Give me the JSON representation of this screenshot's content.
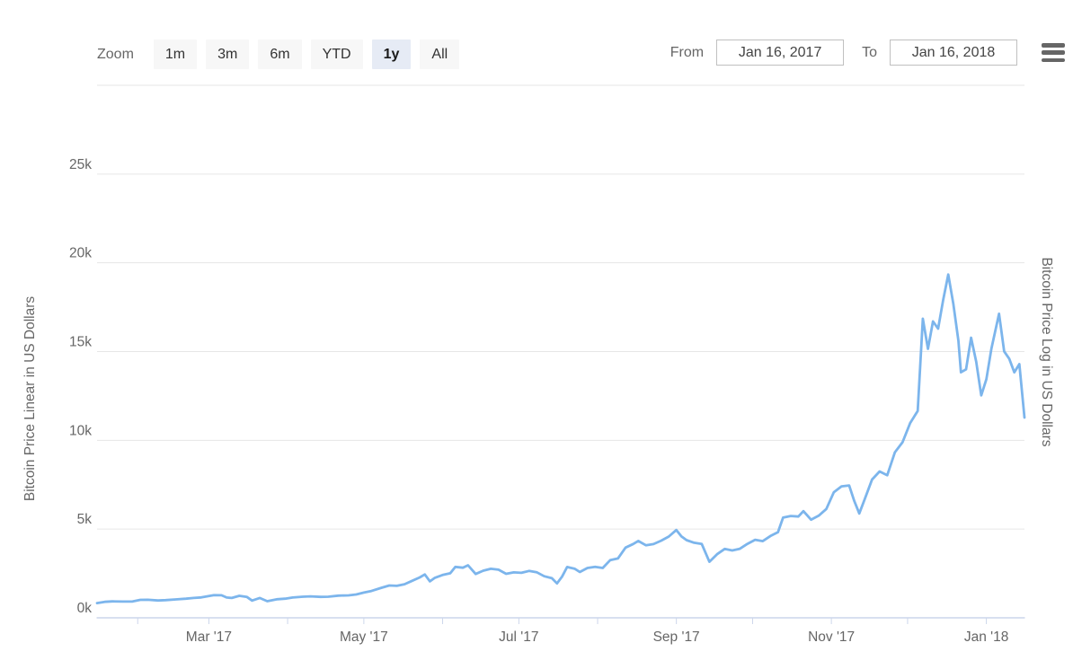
{
  "header": {
    "zoom_label": "Zoom",
    "range_buttons": [
      {
        "label": "1m",
        "selected": false
      },
      {
        "label": "3m",
        "selected": false
      },
      {
        "label": "6m",
        "selected": false
      },
      {
        "label": "YTD",
        "selected": false
      },
      {
        "label": "1y",
        "selected": true
      },
      {
        "label": "All",
        "selected": false
      }
    ],
    "from_label": "From",
    "from_value": "Jan 16, 2017",
    "to_label": "To",
    "to_value": "Jan 16, 2018",
    "menu_icon": "hamburger-menu-icon"
  },
  "colors": {
    "line": "#7cb5ec",
    "grid": "#e6e6e6",
    "axis_line": "#ccd6eb",
    "label": "#666666"
  },
  "chart_data": {
    "type": "line",
    "title": "",
    "left_axis_title": "Bitcoin Price Linear in US Dollars",
    "right_axis_title": "Bitcoin Price Log in US Dollars",
    "x_range": [
      "2017-01-16",
      "2018-01-16"
    ],
    "ylim": [
      0,
      30000
    ],
    "grid": "horizontal-only",
    "legend": "none",
    "yticks": [
      {
        "value": 0,
        "label": "0k"
      },
      {
        "value": 5000,
        "label": "5k"
      },
      {
        "value": 10000,
        "label": "10k"
      },
      {
        "value": 15000,
        "label": "15k"
      },
      {
        "value": 20000,
        "label": "20k"
      },
      {
        "value": 25000,
        "label": "25k"
      },
      {
        "value": 30000,
        "label": ""
      }
    ],
    "xticks": [
      {
        "date": "2017-02-01",
        "label": ""
      },
      {
        "date": "2017-03-01",
        "label": "Mar '17"
      },
      {
        "date": "2017-04-01",
        "label": ""
      },
      {
        "date": "2017-05-01",
        "label": "May '17"
      },
      {
        "date": "2017-06-01",
        "label": ""
      },
      {
        "date": "2017-07-01",
        "label": "Jul '17"
      },
      {
        "date": "2017-08-01",
        "label": ""
      },
      {
        "date": "2017-09-01",
        "label": "Sep '17"
      },
      {
        "date": "2017-10-01",
        "label": ""
      },
      {
        "date": "2017-11-01",
        "label": "Nov '17"
      },
      {
        "date": "2017-12-01",
        "label": ""
      },
      {
        "date": "2018-01-01",
        "label": "Jan '18"
      }
    ],
    "points": [
      [
        "2017-01-16",
        831
      ],
      [
        "2017-01-19",
        899
      ],
      [
        "2017-01-22",
        924
      ],
      [
        "2017-01-26",
        915
      ],
      [
        "2017-01-30",
        921
      ],
      [
        "2017-02-02",
        1010
      ],
      [
        "2017-02-05",
        1018
      ],
      [
        "2017-02-09",
        975
      ],
      [
        "2017-02-12",
        998
      ],
      [
        "2017-02-16",
        1035
      ],
      [
        "2017-02-20",
        1080
      ],
      [
        "2017-02-23",
        1120
      ],
      [
        "2017-02-26",
        1150
      ],
      [
        "2017-03-01",
        1222
      ],
      [
        "2017-03-03",
        1275
      ],
      [
        "2017-03-06",
        1272
      ],
      [
        "2017-03-08",
        1145
      ],
      [
        "2017-03-10",
        1116
      ],
      [
        "2017-03-13",
        1240
      ],
      [
        "2017-03-16",
        1172
      ],
      [
        "2017-03-18",
        972
      ],
      [
        "2017-03-21",
        1120
      ],
      [
        "2017-03-24",
        935
      ],
      [
        "2017-03-28",
        1045
      ],
      [
        "2017-03-31",
        1079
      ],
      [
        "2017-04-03",
        1141
      ],
      [
        "2017-04-07",
        1190
      ],
      [
        "2017-04-10",
        1208
      ],
      [
        "2017-04-14",
        1177
      ],
      [
        "2017-04-17",
        1190
      ],
      [
        "2017-04-21",
        1248
      ],
      [
        "2017-04-25",
        1265
      ],
      [
        "2017-04-28",
        1316
      ],
      [
        "2017-05-01",
        1421
      ],
      [
        "2017-05-04",
        1511
      ],
      [
        "2017-05-08",
        1696
      ],
      [
        "2017-05-11",
        1819
      ],
      [
        "2017-05-14",
        1800
      ],
      [
        "2017-05-17",
        1890
      ],
      [
        "2017-05-20",
        2084
      ],
      [
        "2017-05-23",
        2278
      ],
      [
        "2017-05-25",
        2446
      ],
      [
        "2017-05-27",
        2052
      ],
      [
        "2017-05-29",
        2255
      ],
      [
        "2017-06-01",
        2412
      ],
      [
        "2017-06-04",
        2511
      ],
      [
        "2017-06-06",
        2870
      ],
      [
        "2017-06-09",
        2823
      ],
      [
        "2017-06-11",
        2958
      ],
      [
        "2017-06-14",
        2468
      ],
      [
        "2017-06-17",
        2655
      ],
      [
        "2017-06-20",
        2761
      ],
      [
        "2017-06-23",
        2710
      ],
      [
        "2017-06-26",
        2478
      ],
      [
        "2017-06-29",
        2558
      ],
      [
        "2017-07-02",
        2536
      ],
      [
        "2017-07-05",
        2640
      ],
      [
        "2017-07-08",
        2572
      ],
      [
        "2017-07-11",
        2342
      ],
      [
        "2017-07-14",
        2233
      ],
      [
        "2017-07-16",
        1939
      ],
      [
        "2017-07-18",
        2318
      ],
      [
        "2017-07-20",
        2861
      ],
      [
        "2017-07-23",
        2762
      ],
      [
        "2017-07-25",
        2580
      ],
      [
        "2017-07-28",
        2809
      ],
      [
        "2017-07-31",
        2871
      ],
      [
        "2017-08-03",
        2806
      ],
      [
        "2017-08-06",
        3252
      ],
      [
        "2017-08-09",
        3344
      ],
      [
        "2017-08-12",
        3954
      ],
      [
        "2017-08-15",
        4161
      ],
      [
        "2017-08-17",
        4331
      ],
      [
        "2017-08-20",
        4087
      ],
      [
        "2017-08-23",
        4151
      ],
      [
        "2017-08-26",
        4345
      ],
      [
        "2017-08-29",
        4579
      ],
      [
        "2017-09-01",
        4950
      ],
      [
        "2017-09-03",
        4585
      ],
      [
        "2017-09-05",
        4376
      ],
      [
        "2017-09-08",
        4229
      ],
      [
        "2017-09-11",
        4161
      ],
      [
        "2017-09-14",
        3156
      ],
      [
        "2017-09-17",
        3582
      ],
      [
        "2017-09-20",
        3882
      ],
      [
        "2017-09-23",
        3792
      ],
      [
        "2017-09-26",
        3892
      ],
      [
        "2017-09-29",
        4171
      ],
      [
        "2017-10-02",
        4395
      ],
      [
        "2017-10-05",
        4321
      ],
      [
        "2017-10-08",
        4611
      ],
      [
        "2017-10-11",
        4827
      ],
      [
        "2017-10-13",
        5647
      ],
      [
        "2017-10-16",
        5739
      ],
      [
        "2017-10-19",
        5708
      ],
      [
        "2017-10-21",
        6008
      ],
      [
        "2017-10-24",
        5527
      ],
      [
        "2017-10-27",
        5754
      ],
      [
        "2017-10-30",
        6130
      ],
      [
        "2017-11-02",
        7078
      ],
      [
        "2017-11-05",
        7408
      ],
      [
        "2017-11-08",
        7459
      ],
      [
        "2017-11-10",
        6583
      ],
      [
        "2017-11-12",
        5879
      ],
      [
        "2017-11-14",
        6636
      ],
      [
        "2017-11-17",
        7790
      ],
      [
        "2017-11-20",
        8245
      ],
      [
        "2017-11-23",
        8034
      ],
      [
        "2017-11-26",
        9322
      ],
      [
        "2017-11-29",
        9888
      ],
      [
        "2017-12-02",
        10975
      ],
      [
        "2017-12-05",
        11657
      ],
      [
        "2017-12-07",
        16850
      ],
      [
        "2017-12-09",
        15150
      ],
      [
        "2017-12-11",
        16700
      ],
      [
        "2017-12-13",
        16290
      ],
      [
        "2017-12-15",
        17900
      ],
      [
        "2017-12-17",
        19340
      ],
      [
        "2017-12-19",
        17700
      ],
      [
        "2017-12-21",
        15600
      ],
      [
        "2017-12-22",
        13830
      ],
      [
        "2017-12-24",
        14000
      ],
      [
        "2017-12-26",
        15780
      ],
      [
        "2017-12-28",
        14430
      ],
      [
        "2017-12-30",
        12530
      ],
      [
        "2018-01-01",
        13440
      ],
      [
        "2018-01-03",
        15160
      ],
      [
        "2018-01-06",
        17130
      ],
      [
        "2018-01-08",
        15010
      ],
      [
        "2018-01-10",
        14600
      ],
      [
        "2018-01-12",
        13830
      ],
      [
        "2018-01-14",
        14290
      ],
      [
        "2018-01-16",
        11280
      ]
    ]
  }
}
